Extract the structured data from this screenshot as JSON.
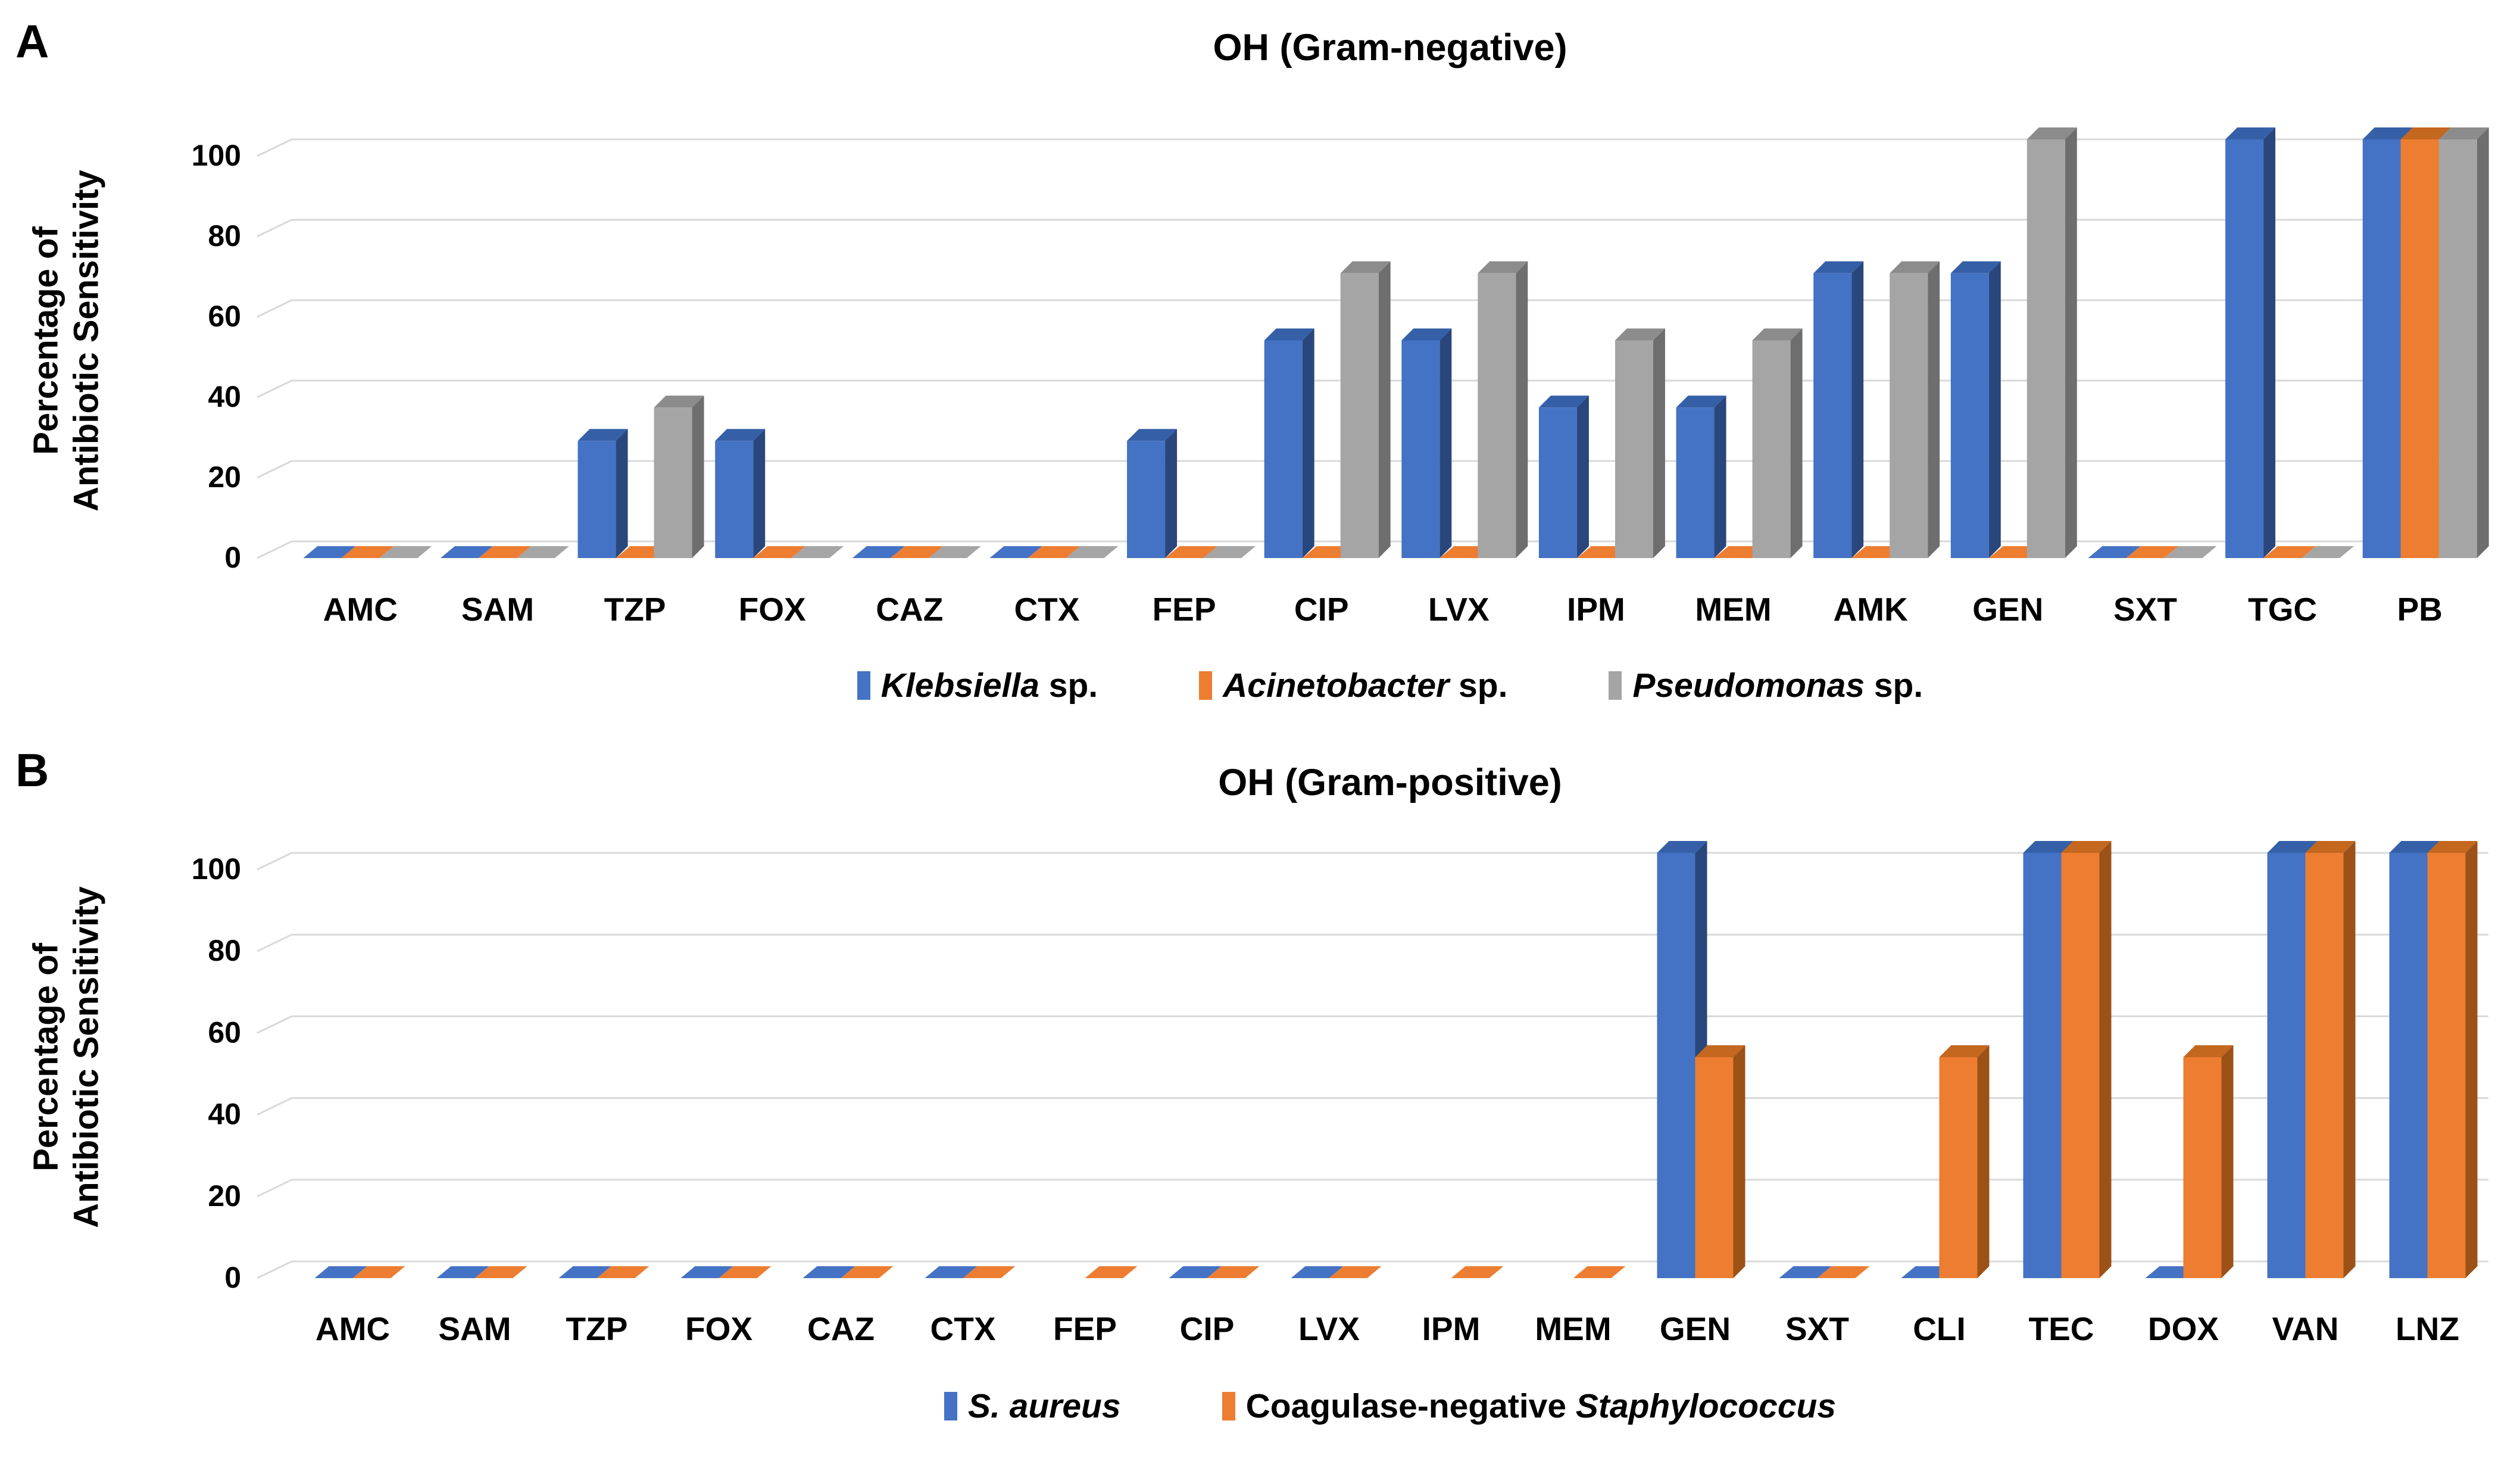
{
  "figure_background": "#ffffff",
  "gridline_color": "#D9D9D9",
  "text_color": "#000000",
  "chart_data": [
    {
      "panel_label": "A",
      "type": "bar",
      "bar_style": "3d",
      "title": "OH (Gram-negative)",
      "ylabel": "Percentage of Antibiotic Sensitivity",
      "ylabel_lines": [
        "Percentage of",
        "Antibiotic Sensitivity"
      ],
      "xlabel": "",
      "ylim": [
        0,
        100
      ],
      "yticks": [
        0,
        20,
        40,
        60,
        80,
        100
      ],
      "grid": true,
      "legend_position": "bottom",
      "categories": [
        "AMC",
        "SAM",
        "TZP",
        "FOX",
        "CAZ",
        "CTX",
        "FEP",
        "CIP",
        "LVX",
        "IPM",
        "MEM",
        "AMK",
        "GEN",
        "SXT",
        "TGC",
        "PB"
      ],
      "series": [
        {
          "name": "Klebsiella sp.",
          "name_segments": [
            {
              "text": "Klebsiella",
              "italic": true
            },
            {
              "text": " sp.",
              "italic": false
            }
          ],
          "color": "#4472C4",
          "side_color": "#29477C",
          "top_color": "#3560A8",
          "values": [
            0,
            0,
            25,
            25,
            0,
            0,
            25,
            50,
            50,
            33.3,
            33.3,
            66.7,
            66.7,
            0,
            100,
            100
          ]
        },
        {
          "name": "Acinetobacter sp.",
          "name_segments": [
            {
              "text": "Acinetobacter",
              "italic": true
            },
            {
              "text": " sp.",
              "italic": false
            }
          ],
          "color": "#ED7D31",
          "side_color": "#9C5117",
          "top_color": "#C4671F",
          "values": [
            0,
            0,
            0,
            0,
            0,
            0,
            0,
            0,
            0,
            0,
            0,
            0,
            0,
            0,
            0,
            100
          ]
        },
        {
          "name": "Pseudomonas sp.",
          "name_segments": [
            {
              "text": "Pseudomonas",
              "italic": true
            },
            {
              "text": " sp.",
              "italic": false
            }
          ],
          "color": "#A5A5A5",
          "side_color": "#6E6E6E",
          "top_color": "#8C8C8C",
          "values": [
            0,
            0,
            33.3,
            0,
            0,
            0,
            0,
            66.7,
            66.7,
            50,
            50,
            66.7,
            100,
            0,
            0,
            100
          ]
        }
      ]
    },
    {
      "panel_label": "B",
      "type": "bar",
      "bar_style": "3d",
      "title": "OH (Gram-positive)",
      "ylabel": "Percentage of Antibiotic Sensitivity",
      "ylabel_lines": [
        "Percentage of",
        "Antibiotic Sensitivity"
      ],
      "xlabel": "",
      "ylim": [
        0,
        100
      ],
      "yticks": [
        0,
        20,
        40,
        60,
        80,
        100
      ],
      "grid": true,
      "legend_position": "bottom",
      "categories": [
        "AMC",
        "SAM",
        "TZP",
        "FOX",
        "CAZ",
        "CTX",
        "FEP",
        "CIP",
        "LVX",
        "IPM",
        "MEM",
        "GEN",
        "SXT",
        "CLI",
        "TEC",
        "DOX",
        "VAN",
        "LNZ"
      ],
      "series": [
        {
          "name": "S. aureus",
          "name_segments": [
            {
              "text": "S. aureus",
              "italic": true
            }
          ],
          "color": "#4472C4",
          "side_color": "#29477C",
          "top_color": "#3560A8",
          "values": [
            0,
            0,
            0,
            0,
            0,
            0,
            null,
            0,
            0,
            null,
            null,
            100,
            0,
            0,
            100,
            0,
            100,
            100
          ]
        },
        {
          "name": "Coagulase-negative Staphylococcus",
          "name_segments": [
            {
              "text": "Coagulase-negative ",
              "italic": false
            },
            {
              "text": "Staphylococcus",
              "italic": true
            }
          ],
          "color": "#ED7D31",
          "side_color": "#9C5117",
          "top_color": "#C4671F",
          "values": [
            0,
            0,
            0,
            0,
            0,
            0,
            0,
            0,
            0,
            0,
            0,
            50,
            0,
            50,
            100,
            50,
            100,
            100
          ]
        }
      ]
    }
  ]
}
